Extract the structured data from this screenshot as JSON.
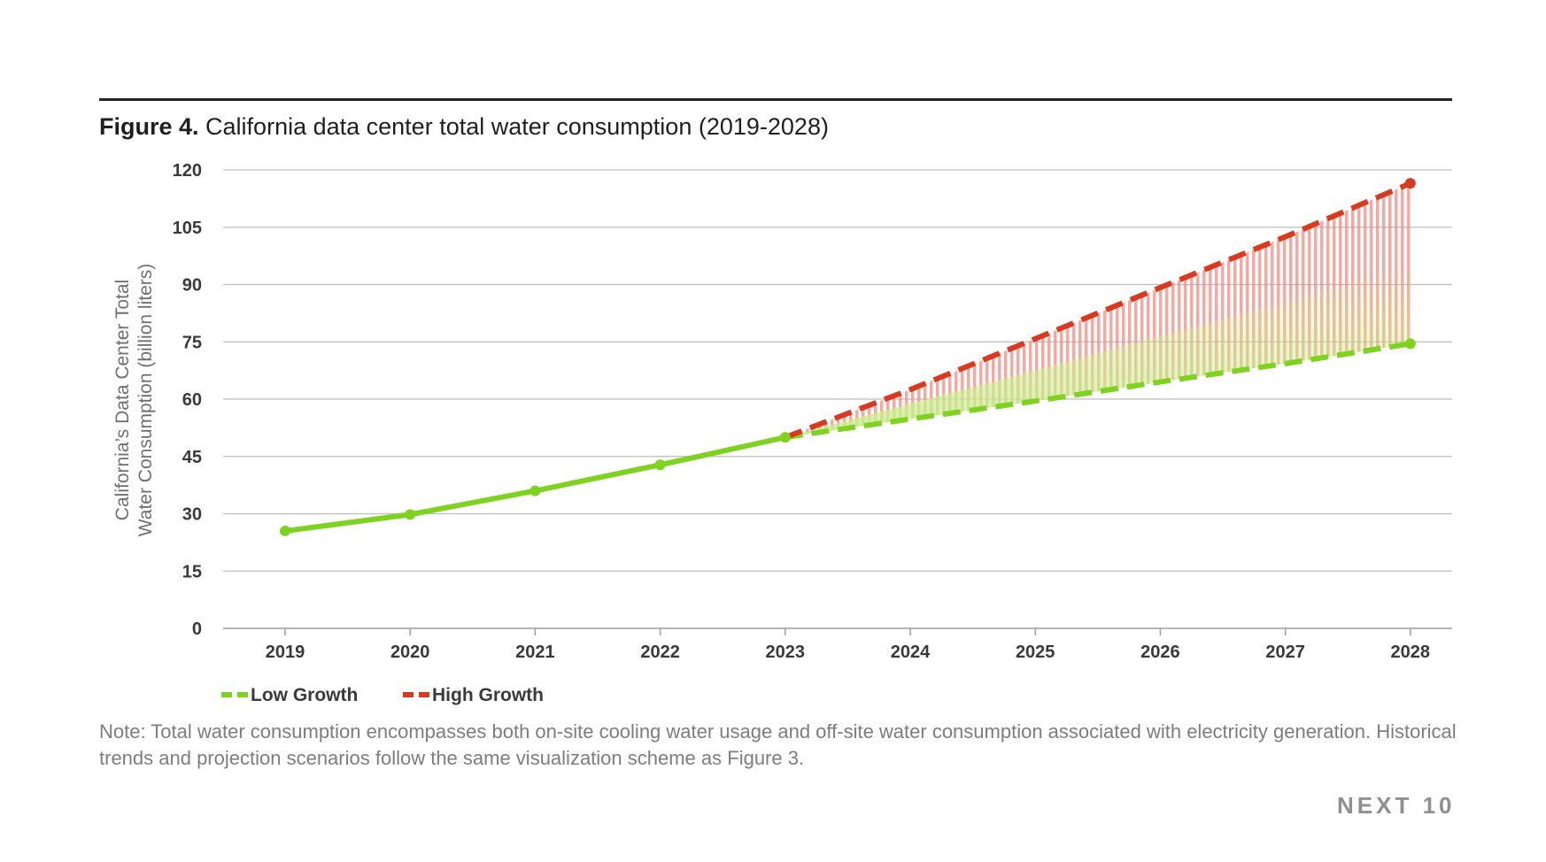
{
  "figure": {
    "label": "Figure 4.",
    "title": "California data center total water consumption (2019-2028)"
  },
  "chart_data": {
    "type": "line",
    "title": "California data center total water consumption (2019-2028)",
    "xlabel": "",
    "ylabel": "California's Data Center Total Water Consumption (billion liters)",
    "ylabel_lines": [
      "California’s Data Center Total",
      "Water Consumption (billion liters)"
    ],
    "ylim": [
      0,
      120
    ],
    "yticks": [
      0,
      15,
      30,
      45,
      60,
      75,
      90,
      105,
      120
    ],
    "categories": [
      "2019",
      "2020",
      "2021",
      "2022",
      "2023",
      "2024",
      "2025",
      "2026",
      "2027",
      "2028"
    ],
    "historical": {
      "x": [
        "2019",
        "2020",
        "2021",
        "2022",
        "2023"
      ],
      "values": [
        25.5,
        29.8,
        36,
        42.8,
        50
      ]
    },
    "series": [
      {
        "name": "Low Growth",
        "color": "#7ed321",
        "style": "dashed",
        "x": [
          "2023",
          "2024",
          "2025",
          "2026",
          "2027",
          "2028"
        ],
        "values": [
          50,
          54.8,
          59.5,
          64.5,
          69.3,
          74.5
        ]
      },
      {
        "name": "High Growth",
        "color": "#d93a1f",
        "style": "dashed",
        "x": [
          "2023",
          "2024",
          "2025",
          "2026",
          "2027",
          "2028"
        ],
        "values": [
          50,
          62.5,
          75.8,
          89.2,
          102.5,
          116.5
        ]
      }
    ],
    "projection_band": "shaded between Low Growth and High Growth",
    "grid": true,
    "legend_position": "bottom-left",
    "colors": {
      "historical": "#7ed321",
      "band": "#f28c80",
      "grid": "#bdbdbd",
      "axis": "#9e9e9e"
    }
  },
  "note": "Note: Total water consumption encompasses both on-site cooling water usage and off-site water consumption associated with electricity generation. Historical trends and projection scenarios follow the same visualization scheme as Figure 3.",
  "logo": {
    "text": "NEXT 10"
  }
}
